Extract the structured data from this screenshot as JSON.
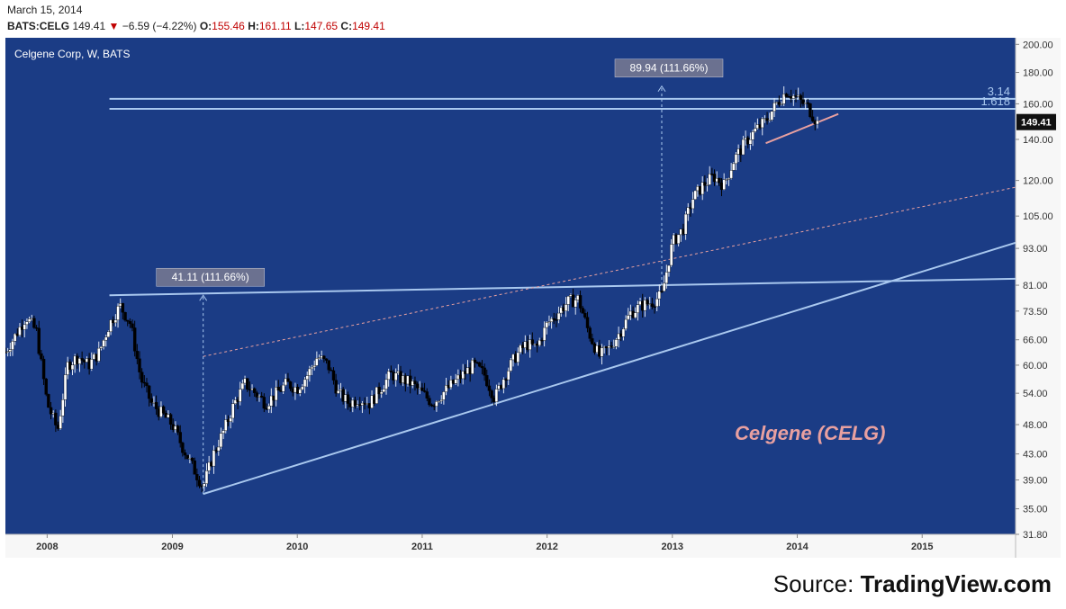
{
  "header": {
    "date": "March 15, 2014",
    "symbol": "BATS:CELG",
    "last": "149.41",
    "change": "−6.59 (−4.22%)",
    "open_label": "O:",
    "open": "155.46",
    "high_label": "H:",
    "high": "161.11",
    "low_label": "L:",
    "low": "147.65",
    "close_label": "C:",
    "close": "149.41"
  },
  "colors": {
    "panel": "#1b3c85",
    "axis_bg": "#f7f7f7",
    "trendline": "#a9c8ef",
    "pink": "#e8a0a0",
    "up_candle": "#ffffff",
    "down_candle": "#000000",
    "price_tag": "#111111"
  },
  "source": {
    "prefix": "Source: ",
    "site": "TradingView.com"
  },
  "chart_data": {
    "type": "candlestick",
    "title": "Celgene Corp, W, BATS",
    "watermark": "Celgene (CELG)",
    "scale": "log",
    "ylim": [
      31.8,
      205
    ],
    "y_ticks": [
      "200.00",
      "180.00",
      "160.00",
      "140.00",
      "120.00",
      "105.00",
      "93.00",
      "81.00",
      "73.50",
      "66.00",
      "60.00",
      "54.00",
      "48.00",
      "43.00",
      "39.00",
      "35.00",
      "31.80"
    ],
    "x_ticks": [
      "2008",
      "2009",
      "2010",
      "2011",
      "2012",
      "2013",
      "2014",
      "2015"
    ],
    "x_range": [
      "2007-09",
      "2015-10"
    ],
    "last_price": {
      "value": 149.41,
      "label": "149.41"
    },
    "horizontal_levels": [
      {
        "value": 163,
        "label": "3.14"
      },
      {
        "value": 157,
        "label": "1.618"
      }
    ],
    "annotations": [
      {
        "text": "41.11 (111.66%)",
        "x": "2009-04",
        "from": 37,
        "to": 78
      },
      {
        "text": "89.94 (111.66%)",
        "x": "2012-12",
        "from": 81,
        "to": 171
      }
    ],
    "trend_lines": [
      {
        "name": "support",
        "points": [
          [
            "2009-04",
            37
          ],
          [
            "2015-10",
            95
          ]
        ]
      },
      {
        "name": "resistance",
        "points": [
          [
            "2008-07",
            78
          ],
          [
            "2015-10",
            83
          ]
        ]
      },
      {
        "name": "channel",
        "dashed": true,
        "points": [
          [
            "2009-04",
            62
          ],
          [
            "2015-10",
            117
          ]
        ]
      },
      {
        "name": "neckline",
        "points": [
          [
            "2013-10",
            138
          ],
          [
            "2014-05",
            154
          ]
        ]
      }
    ],
    "price_path": [
      [
        "2007-09",
        63
      ],
      [
        "2007-11",
        72
      ],
      [
        "2007-12",
        68
      ],
      [
        "2008-01",
        52
      ],
      [
        "2008-02",
        47
      ],
      [
        "2008-03",
        60
      ],
      [
        "2008-04",
        62
      ],
      [
        "2008-05",
        60
      ],
      [
        "2008-06",
        63
      ],
      [
        "2008-07",
        70
      ],
      [
        "2008-08",
        75
      ],
      [
        "2008-09",
        70
      ],
      [
        "2008-10",
        57
      ],
      [
        "2008-11",
        52
      ],
      [
        "2008-12",
        50
      ],
      [
        "2009-01",
        48
      ],
      [
        "2009-02",
        44
      ],
      [
        "2009-03",
        41
      ],
      [
        "2009-04",
        38
      ],
      [
        "2009-05",
        43
      ],
      [
        "2009-06",
        47
      ],
      [
        "2009-07",
        52
      ],
      [
        "2009-08",
        56
      ],
      [
        "2009-09",
        54
      ],
      [
        "2009-10",
        52
      ],
      [
        "2009-11",
        54
      ],
      [
        "2009-12",
        56
      ],
      [
        "2010-01",
        55
      ],
      [
        "2010-02",
        58
      ],
      [
        "2010-03",
        62
      ],
      [
        "2010-04",
        60
      ],
      [
        "2010-05",
        54
      ],
      [
        "2010-06",
        52
      ],
      [
        "2010-07",
        53
      ],
      [
        "2010-08",
        52
      ],
      [
        "2010-09",
        55
      ],
      [
        "2010-10",
        58
      ],
      [
        "2010-11",
        57
      ],
      [
        "2010-12",
        56
      ],
      [
        "2011-01",
        54
      ],
      [
        "2011-02",
        52
      ],
      [
        "2011-03",
        54
      ],
      [
        "2011-04",
        56
      ],
      [
        "2011-05",
        58
      ],
      [
        "2011-06",
        60
      ],
      [
        "2011-07",
        58
      ],
      [
        "2011-08",
        53
      ],
      [
        "2011-09",
        58
      ],
      [
        "2011-10",
        62
      ],
      [
        "2011-11",
        65
      ],
      [
        "2011-12",
        64
      ],
      [
        "2012-01",
        70
      ],
      [
        "2012-02",
        73
      ],
      [
        "2012-03",
        76
      ],
      [
        "2012-04",
        77
      ],
      [
        "2012-05",
        68
      ],
      [
        "2012-06",
        62
      ],
      [
        "2012-07",
        64
      ],
      [
        "2012-08",
        68
      ],
      [
        "2012-09",
        73
      ],
      [
        "2012-10",
        75
      ],
      [
        "2012-11",
        76
      ],
      [
        "2012-12",
        78
      ],
      [
        "2013-01",
        95
      ],
      [
        "2013-02",
        100
      ],
      [
        "2013-03",
        112
      ],
      [
        "2013-04",
        118
      ],
      [
        "2013-05",
        122
      ],
      [
        "2013-06",
        118
      ],
      [
        "2013-07",
        130
      ],
      [
        "2013-08",
        138
      ],
      [
        "2013-09",
        145
      ],
      [
        "2013-10",
        150
      ],
      [
        "2013-11",
        160
      ],
      [
        "2013-12",
        168
      ],
      [
        "2014-01",
        163
      ],
      [
        "2014-02",
        158
      ],
      [
        "2014-03",
        149
      ]
    ]
  }
}
